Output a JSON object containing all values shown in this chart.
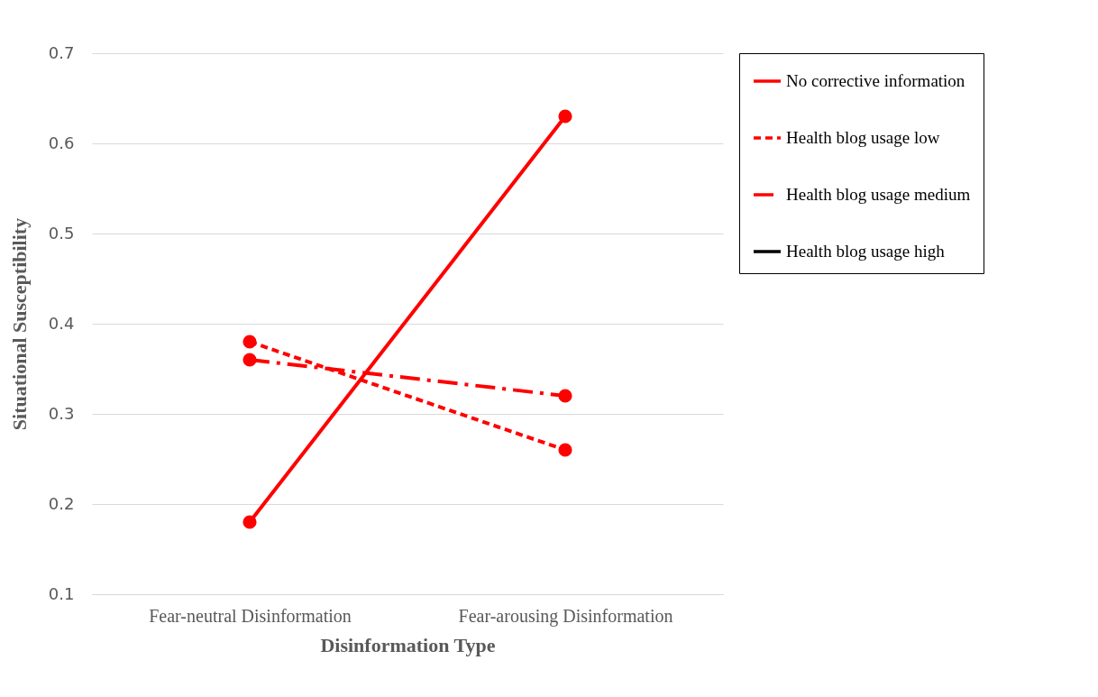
{
  "chart_data": {
    "type": "line",
    "xlabel": "Disinformation Type",
    "ylabel": "Situational Susceptibility",
    "categories": [
      "Fear-neutral Disinformation",
      "Fear-arousing Disinformation"
    ],
    "series": [
      {
        "name": "No corrective information",
        "color": "#ff0000",
        "line_style": "solid",
        "values": [
          0.18,
          0.63
        ]
      },
      {
        "name": "Health blog usage low",
        "color": "#ff0000",
        "line_style": "dashed",
        "values": [
          0.38,
          0.26
        ]
      },
      {
        "name": "Health blog usage medium",
        "color": "#ff0000",
        "line_style": "dashdot",
        "values": [
          0.36,
          0.32
        ]
      },
      {
        "name": "Health blog usage high",
        "color": "#000000",
        "line_style": "solid",
        "values": [
          null,
          null
        ]
      }
    ],
    "ylim": [
      0.1,
      0.7
    ],
    "yticks": [
      0.1,
      0.2,
      0.3,
      0.4,
      0.5,
      0.6,
      0.7
    ],
    "grid": "y",
    "legend": "right",
    "marker": "circle"
  }
}
